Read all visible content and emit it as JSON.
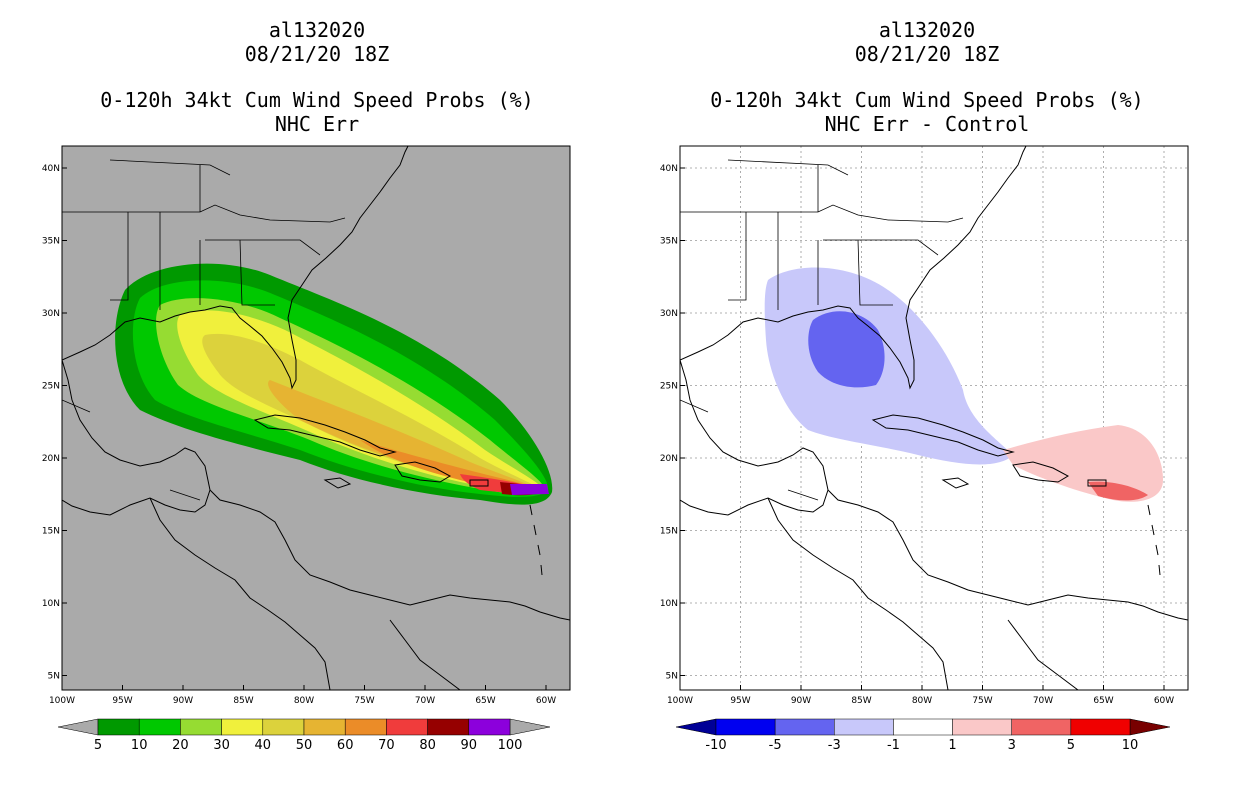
{
  "left": {
    "storm": "al132020",
    "date": "08/21/20 18Z",
    "product": "0-120h 34kt Cum Wind Speed Probs (%)",
    "subtitle": "NHC Err",
    "colorbar": {
      "labels": [
        "5",
        "10",
        "20",
        "30",
        "40",
        "50",
        "60",
        "70",
        "80",
        "90",
        "100"
      ],
      "colors": [
        "#009900",
        "#00c800",
        "#96dc32",
        "#f0f03c",
        "#dcd23c",
        "#e6b432",
        "#eb8c28",
        "#f03c3c",
        "#960000",
        "#8c00dc"
      ]
    }
  },
  "right": {
    "storm": "al132020",
    "date": "08/21/20 18Z",
    "product": "0-120h 34kt Cum Wind Speed Probs (%)",
    "subtitle": "NHC Err - Control",
    "colorbar": {
      "labels": [
        "-10",
        "-5",
        "-3",
        "-1",
        "1",
        "3",
        "5",
        "10"
      ],
      "colors": [
        "#0000f0",
        "#6464f0",
        "#c8c8fa",
        "#ffffff",
        "#fac8c8",
        "#f06464",
        "#f00000"
      ]
    }
  },
  "axes": {
    "lat_labels": [
      "40N",
      "35N",
      "30N",
      "25N",
      "20N",
      "15N",
      "10N",
      "5N"
    ],
    "lon_labels": [
      "100W",
      "95W",
      "90W",
      "85W",
      "80W",
      "75W",
      "70W",
      "65W",
      "60W"
    ]
  }
}
